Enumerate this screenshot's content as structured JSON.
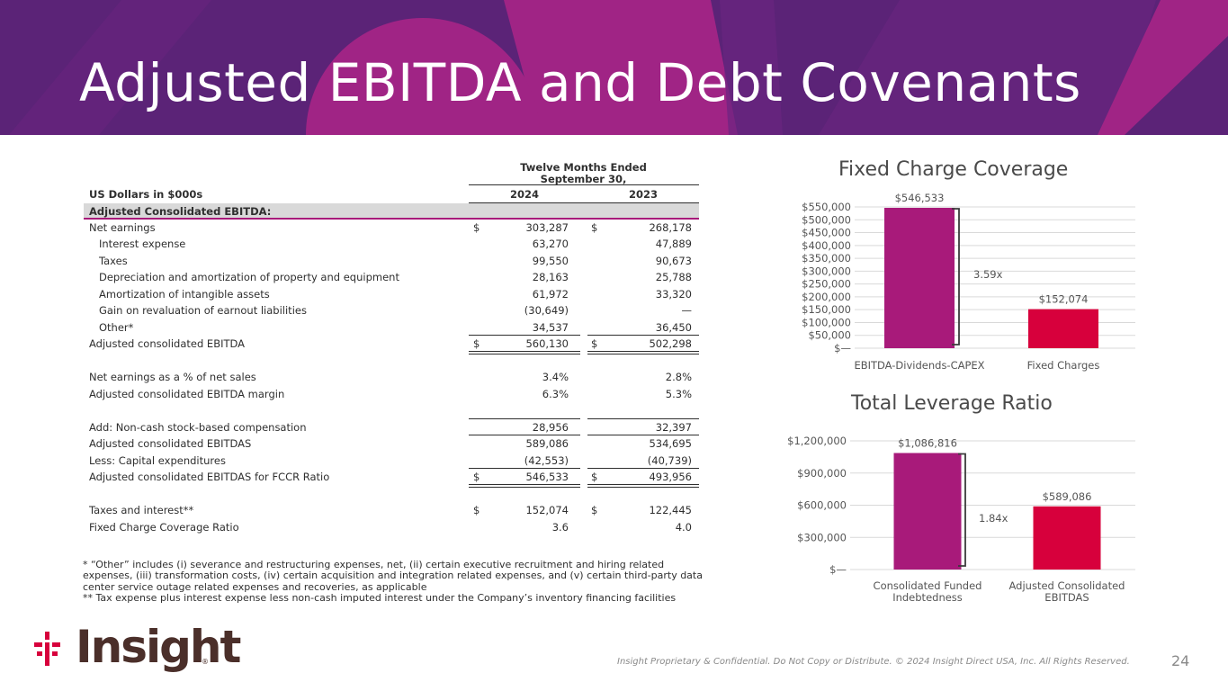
{
  "slide": {
    "title": "Adjusted EBITDA and Debt Covenants",
    "page_number": "24",
    "legal_notice": "Insight Proprietary & Confidential. Do Not Copy or Distribute. © 2024 Insight Direct USA, Inc. All Rights Reserved.",
    "logo_text": "Insight",
    "logo_reg": "®"
  },
  "colors": {
    "banner": "#5b2377",
    "banner_accent": "#a02485",
    "bar_magenta": "#a81a7a",
    "bar_red": "#d7003c",
    "table_header_fill": "#d9d9d9",
    "section_rule": "#a81a7a"
  },
  "table": {
    "period_header": "Twelve Months Ended\nSeptember 30,",
    "unit_label": "US Dollars in $000s",
    "col_2024": "2024",
    "col_2023": "2023",
    "section_header": "Adjusted Consolidated EBITDA:",
    "rows": [
      {
        "label": "Net earnings",
        "cur1": "$",
        "v2024": "303,287",
        "cur2": "$",
        "v2023": "268,178"
      },
      {
        "label": "Interest expense",
        "v2024": "63,270",
        "v2023": "47,889"
      },
      {
        "label": "Taxes",
        "v2024": "99,550",
        "v2023": "90,673"
      },
      {
        "label": "Depreciation and amortization of property and equipment",
        "v2024": "28,163",
        "v2023": "25,788"
      },
      {
        "label": "Amortization of intangible assets",
        "v2024": "61,972",
        "v2023": "33,320"
      },
      {
        "label": "Gain on revaluation of earnout liabilities",
        "v2024": "(30,649)",
        "v2023": "—"
      },
      {
        "label": "Other*",
        "v2024": "34,537",
        "v2023": "36,450"
      },
      {
        "label": "Adjusted consolidated EBITDA",
        "cur1": "$",
        "v2024": "560,130",
        "cur2": "$",
        "v2023": "502,298"
      },
      {
        "label": "Net earnings as a % of net sales",
        "v2024": "3.4%",
        "v2023": "2.8%"
      },
      {
        "label": "Adjusted consolidated EBITDA margin",
        "v2024": "6.3%",
        "v2023": "5.3%"
      },
      {
        "label": "Add: Non-cash stock-based compensation",
        "v2024": "28,956",
        "v2023": "32,397"
      },
      {
        "label": "Adjusted consolidated EBITDAS",
        "v2024": "589,086",
        "v2023": "534,695"
      },
      {
        "label": "Less: Capital expenditures",
        "v2024": "(42,553)",
        "v2023": "(40,739)"
      },
      {
        "label": "Adjusted consolidated EBITDAS for FCCR Ratio",
        "cur1": "$",
        "v2024": "546,533",
        "cur2": "$",
        "v2023": "493,956"
      },
      {
        "label": "Taxes and interest**",
        "cur1": "$",
        "v2024": "152,074",
        "cur2": "$",
        "v2023": "122,445"
      },
      {
        "label": "Fixed Charge Coverage Ratio",
        "v2024": "3.6",
        "v2023": "4.0"
      }
    ],
    "footnote_1": "* “Other” includes (i) severance and restructuring expenses, net, (ii) certain executive recruitment and hiring related expenses, (iii) transformation costs, (iv) certain acquisition and integration related expenses, and (v) certain third-party data center service outage related expenses and recoveries, as applicable",
    "footnote_2": "** Tax expense plus interest expense less non-cash imputed interest under the Company’s inventory financing facilities"
  },
  "chart_data": [
    {
      "type": "bar",
      "title": "Fixed Charge Coverage",
      "categories": [
        "EBITDA-Dividends-CAPEX",
        "Fixed Charges"
      ],
      "values": [
        546533,
        152074
      ],
      "value_labels": [
        "$546,533",
        "$152,074"
      ],
      "ylim": [
        0,
        550000
      ],
      "y_ticks": [
        0,
        50000,
        100000,
        150000,
        200000,
        250000,
        300000,
        350000,
        400000,
        450000,
        500000,
        550000
      ],
      "y_tick_labels": [
        "$—",
        "$50,000",
        "$100,000",
        "$150,000",
        "$200,000",
        "$250,000",
        "$300,000",
        "$350,000",
        "$400,000",
        "$450,000",
        "$500,000",
        "$550,000"
      ],
      "annotation": "3.59x",
      "grid": true,
      "legend": "none"
    },
    {
      "type": "bar",
      "title": "Total Leverage Ratio",
      "categories": [
        "Consolidated Funded\nIndebtedness",
        "Adjusted Consolidated\nEBITDAS"
      ],
      "values": [
        1086816,
        589086
      ],
      "value_labels": [
        "$1,086,816",
        "$589,086"
      ],
      "ylim": [
        0,
        1200000
      ],
      "y_ticks": [
        0,
        300000,
        600000,
        900000,
        1200000
      ],
      "y_tick_labels": [
        "$—",
        "$300,000",
        "$600,000",
        "$900,000",
        "$1,200,000"
      ],
      "annotation": "1.84x",
      "grid": true,
      "legend": "none"
    }
  ]
}
